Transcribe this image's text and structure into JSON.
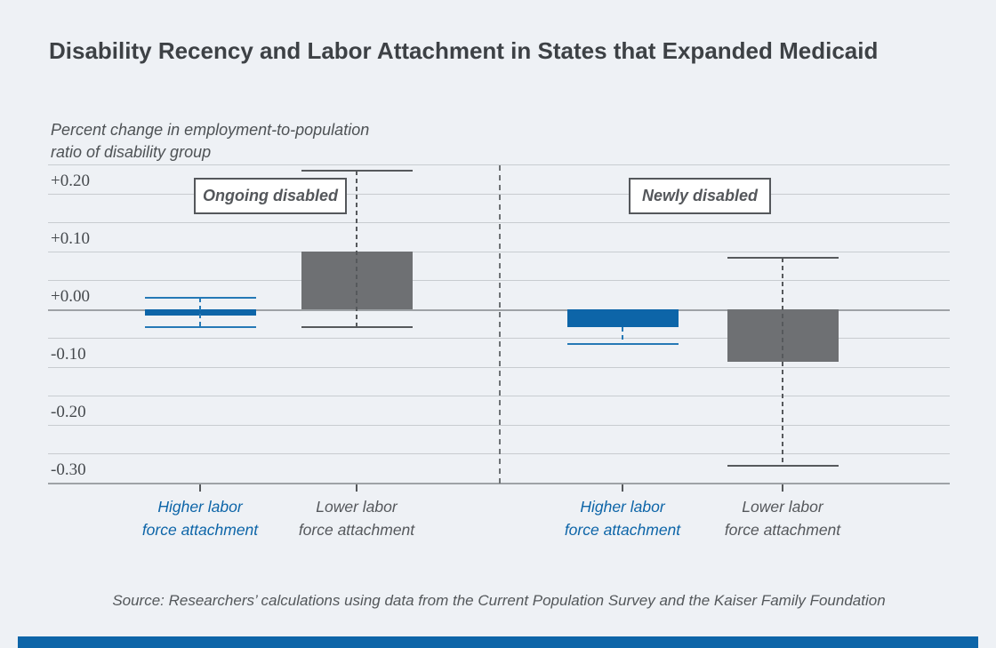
{
  "figure": {
    "background": "#eef1f5",
    "accent_color": "#0d65a8",
    "bar_blue": "#0d65a8",
    "bar_gray": "#6e7073"
  },
  "title": "Disability Recency and Labor Attachment in States that Expanded Medicaid",
  "axis_note": {
    "line1": "Percent change in employment-to-population",
    "line2": "ratio of disability group"
  },
  "group_labels": [
    {
      "text": "Ongoing disabled"
    },
    {
      "text": "Newly disabled"
    }
  ],
  "source": "Source: Researchers’ calculations using data from the Current Population Survey and the Kaiser Family Foundation",
  "chart_data": {
    "type": "bar",
    "title": "Disability Recency and Labor Attachment in States that Expanded Medicaid",
    "ylabel": "Percent change in employment-to-population ratio of disability group",
    "ylim": [
      -0.325,
      0.275
    ],
    "grid": true,
    "legend": "none",
    "yticks": [
      {
        "value": 0.25,
        "label": ""
      },
      {
        "value": 0.2,
        "label": "+0.20"
      },
      {
        "value": 0.15,
        "label": ""
      },
      {
        "value": 0.1,
        "label": "+0.10"
      },
      {
        "value": 0.05,
        "label": ""
      },
      {
        "value": 0.0,
        "label": "+0.00"
      },
      {
        "value": -0.05,
        "label": ""
      },
      {
        "value": -0.1,
        "label": "-0.10"
      },
      {
        "value": -0.15,
        "label": ""
      },
      {
        "value": -0.2,
        "label": "-0.20"
      },
      {
        "value": -0.25,
        "label": ""
      },
      {
        "value": -0.3,
        "label": "-0.30"
      }
    ],
    "groups": [
      {
        "name": "Ongoing disabled",
        "bars": [
          {
            "category": "Higher labor force attachment",
            "label_lines": [
              "Higher labor",
              "force attachment"
            ],
            "value": -0.01,
            "ci_high": 0.02,
            "ci_low": -0.03,
            "color": "#0d65a8",
            "label_color": "#0d65a8"
          },
          {
            "category": "Lower labor force attachment",
            "label_lines": [
              "Lower labor",
              "force attachment"
            ],
            "value": 0.1,
            "ci_high": 0.24,
            "ci_low": -0.03,
            "color": "#6e7073",
            "label_color": "#55585c"
          }
        ]
      },
      {
        "name": "Newly disabled",
        "bars": [
          {
            "category": "Higher labor force attachment",
            "label_lines": [
              "Higher labor",
              "force attachment"
            ],
            "value": -0.03,
            "ci_high": null,
            "ci_low": -0.06,
            "color": "#0d65a8",
            "label_color": "#0d65a8"
          },
          {
            "category": "Lower labor force attachment",
            "label_lines": [
              "Lower labor",
              "force attachment"
            ],
            "value": -0.09,
            "ci_high": 0.09,
            "ci_low": -0.27,
            "color": "#6e7073",
            "label_color": "#55585c"
          }
        ]
      }
    ]
  }
}
